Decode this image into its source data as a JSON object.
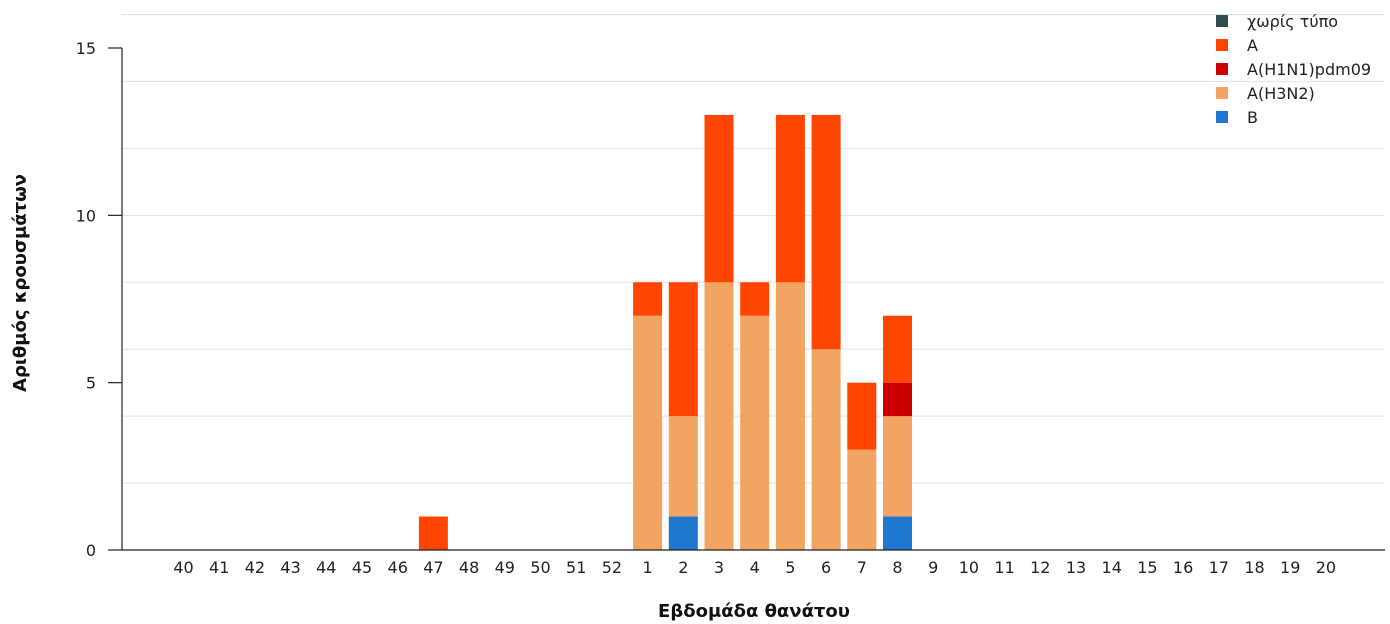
{
  "chart_data": {
    "type": "bar",
    "stacked": true,
    "xlabel": "Εβδομάδα θανάτου",
    "ylabel": "Αριθμός κρουσμάτων",
    "ylim": [
      0,
      15
    ],
    "yticks": [
      0,
      5,
      10,
      15
    ],
    "grid": true,
    "legend_position": "top-right",
    "categories": [
      "40",
      "41",
      "42",
      "43",
      "44",
      "45",
      "46",
      "47",
      "48",
      "49",
      "50",
      "51",
      "52",
      "1",
      "2",
      "3",
      "4",
      "5",
      "6",
      "7",
      "8",
      "9",
      "10",
      "11",
      "12",
      "13",
      "14",
      "15",
      "16",
      "17",
      "18",
      "19",
      "20"
    ],
    "series": [
      {
        "name": "B",
        "color": "#1f77d0",
        "values": [
          0,
          0,
          0,
          0,
          0,
          0,
          0,
          0,
          0,
          0,
          0,
          0,
          0,
          0,
          1,
          0,
          0,
          0,
          0,
          0,
          1,
          0,
          0,
          0,
          0,
          0,
          0,
          0,
          0,
          0,
          0,
          0,
          0
        ]
      },
      {
        "name": "A(H3N2)",
        "color": "#f2a463",
        "values": [
          0,
          0,
          0,
          0,
          0,
          0,
          0,
          0,
          0,
          0,
          0,
          0,
          0,
          7,
          3,
          8,
          7,
          8,
          6,
          3,
          3,
          0,
          0,
          0,
          0,
          0,
          0,
          0,
          0,
          0,
          0,
          0,
          0
        ]
      },
      {
        "name": "A(H1N1)pdm09",
        "color": "#cc0000",
        "values": [
          0,
          0,
          0,
          0,
          0,
          0,
          0,
          0,
          0,
          0,
          0,
          0,
          0,
          0,
          0,
          0,
          0,
          0,
          0,
          0,
          1,
          0,
          0,
          0,
          0,
          0,
          0,
          0,
          0,
          0,
          0,
          0,
          0
        ]
      },
      {
        "name": "A",
        "color": "#ff4500",
        "values": [
          0,
          0,
          0,
          0,
          0,
          0,
          0,
          1,
          0,
          0,
          0,
          0,
          0,
          1,
          4,
          5,
          1,
          5,
          7,
          2,
          2,
          0,
          0,
          0,
          0,
          0,
          0,
          0,
          0,
          0,
          0,
          0,
          0
        ]
      },
      {
        "name": "χωρίς τύπο",
        "color": "#2f4f4f",
        "values": [
          0,
          0,
          0,
          0,
          0,
          0,
          0,
          0,
          0,
          0,
          0,
          0,
          0,
          0,
          0,
          0,
          0,
          0,
          0,
          0,
          0,
          0,
          0,
          0,
          0,
          0,
          0,
          0,
          0,
          0,
          0,
          0,
          0
        ]
      }
    ],
    "legend_order": [
      "χωρίς τύπο",
      "A",
      "A(H1N1)pdm09",
      "A(H3N2)",
      "B"
    ]
  }
}
